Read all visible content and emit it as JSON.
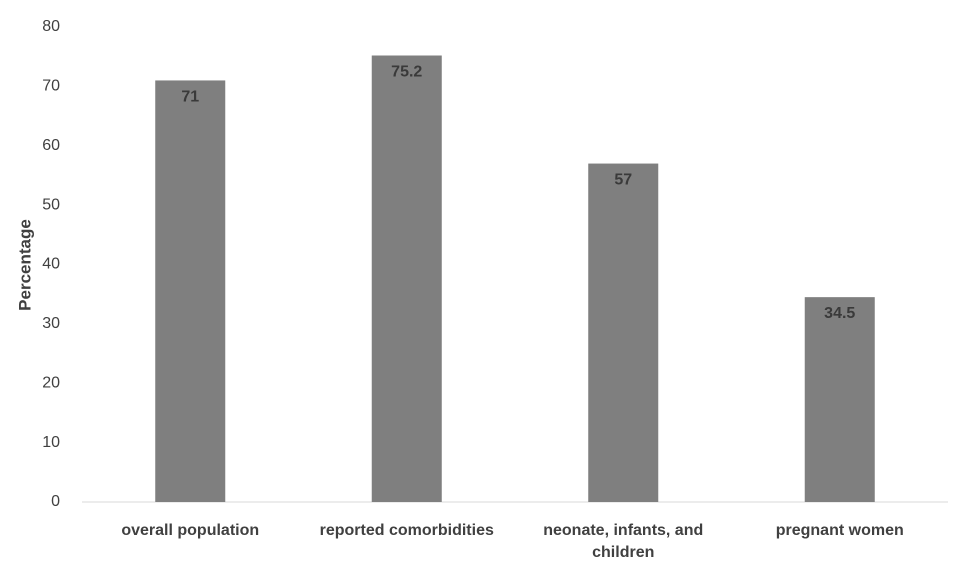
{
  "chart_data": {
    "type": "bar",
    "title": "",
    "xlabel": "",
    "ylabel": "Percentage",
    "categories": [
      [
        "overall population"
      ],
      [
        "reported comorbidities"
      ],
      [
        "neonate, infants, and",
        "children"
      ],
      [
        "pregnant women"
      ]
    ],
    "values": [
      71,
      75.2,
      57,
      34.5
    ],
    "data_labels": [
      "71",
      "75.2",
      "57",
      "34.5"
    ],
    "ylim": [
      0,
      80
    ],
    "yticks": [
      0,
      10,
      20,
      30,
      40,
      50,
      60,
      70,
      80
    ],
    "grid": false,
    "legend": "none",
    "bar_color": "#7f7f7f",
    "axis_color": "#d9d9d9"
  }
}
